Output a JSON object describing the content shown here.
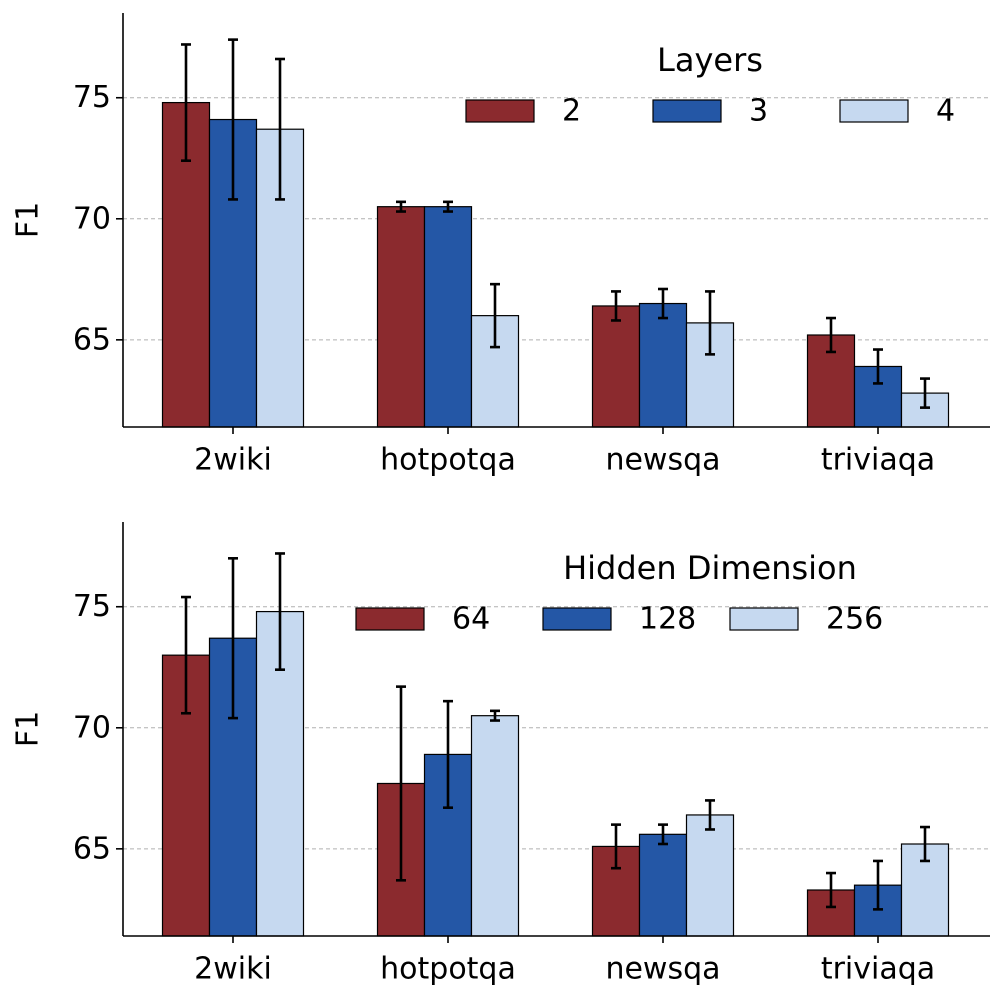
{
  "chart_data": [
    {
      "type": "bar",
      "title": "",
      "xlabel": "",
      "ylabel": "F1",
      "ylim": [
        61.4,
        78.5
      ],
      "yticks": [
        65,
        70,
        75
      ],
      "grid": "horizontal dashed",
      "legend": {
        "title": "Layers",
        "placement": "top-right",
        "columns": 3
      },
      "categories": [
        "2wiki",
        "hotpotqa",
        "newsqa",
        "triviaqa"
      ],
      "series": [
        {
          "name": "2",
          "color": "#8b2a2e",
          "values": [
            74.8,
            70.5,
            66.4,
            65.2
          ],
          "errors": [
            2.4,
            0.2,
            0.6,
            0.7
          ]
        },
        {
          "name": "3",
          "color": "#2457a6",
          "values": [
            74.1,
            70.5,
            66.5,
            63.9
          ],
          "errors": [
            3.3,
            0.2,
            0.6,
            0.7
          ]
        },
        {
          "name": "4",
          "color": "#c6d9f0",
          "values": [
            73.7,
            66.0,
            65.7,
            62.8
          ],
          "errors": [
            2.9,
            1.3,
            1.3,
            0.6
          ]
        }
      ]
    },
    {
      "type": "bar",
      "title": "",
      "xlabel": "",
      "ylabel": "F1",
      "ylim": [
        61.4,
        78.5
      ],
      "yticks": [
        65,
        70,
        75
      ],
      "grid": "horizontal dashed",
      "legend": {
        "title": "Hidden Dimension",
        "placement": "top-right",
        "columns": 3
      },
      "categories": [
        "2wiki",
        "hotpotqa",
        "newsqa",
        "triviaqa"
      ],
      "series": [
        {
          "name": "64",
          "color": "#8b2a2e",
          "values": [
            73.0,
            67.7,
            65.1,
            63.3
          ],
          "errors": [
            2.4,
            4.0,
            0.9,
            0.7
          ]
        },
        {
          "name": "128",
          "color": "#2457a6",
          "values": [
            73.7,
            68.9,
            65.6,
            63.5
          ],
          "errors": [
            3.3,
            2.2,
            0.4,
            1.0
          ]
        },
        {
          "name": "256",
          "color": "#c6d9f0",
          "values": [
            74.8,
            70.5,
            66.4,
            65.2
          ],
          "errors": [
            2.4,
            0.2,
            0.6,
            0.7
          ]
        }
      ]
    }
  ]
}
